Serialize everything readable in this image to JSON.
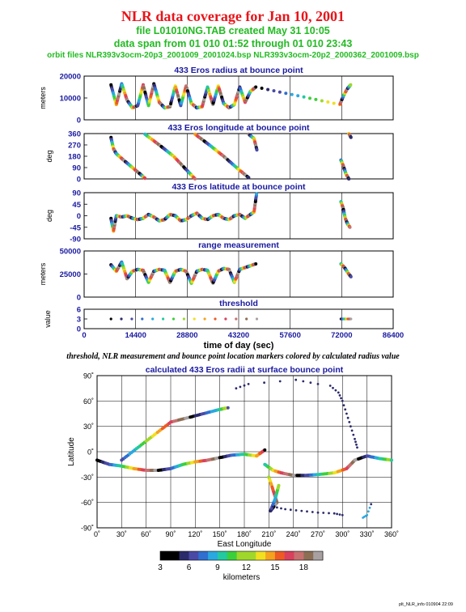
{
  "header": {
    "title": "NLR data coverage for Jan 10, 2001",
    "file_line": "file L01010NG.TAB created May 31 10:05",
    "span_line": "data span from 01 010 01:52 through 01 010 23:43",
    "orbit_line": "orbit files NLR393v3ocm-20p3_2001009_2001024.bsp NLR393v3ocm-20p2_2000362_2001009.bsp"
  },
  "caption": "threshold, NLR measurement and bounce point location markers colored by calculated radius value",
  "footer": "plt_NLR_info 010904 22:09",
  "colors": {
    "title": "#e8141a",
    "subtitle": "#22bb22",
    "panel_title": "#1a1aa0",
    "axis_text": "#1a1aa0"
  },
  "chart_data": [
    {
      "id": "radius",
      "type": "scatter",
      "title": "433 Eros radius at bounce point",
      "ylabel": "meters",
      "ylim": [
        0,
        20000
      ],
      "yticks": [
        "20000",
        "10000",
        "0"
      ],
      "xlim": [
        0,
        86400
      ],
      "series": [
        {
          "x": [
            7500,
            9000,
            10500,
            12000,
            13500,
            15000,
            16500,
            18000,
            19500,
            21000,
            22500,
            24000,
            25500,
            27000,
            28500,
            30000,
            31500,
            33000,
            34500,
            36000,
            37500,
            39000,
            40500,
            42000,
            43500,
            45000,
            46500,
            48000,
            71500,
            72500,
            73500,
            74500
          ],
          "y": [
            16000,
            7000,
            16500,
            9000,
            5500,
            6500,
            16000,
            6500,
            16500,
            8000,
            5500,
            6000,
            15500,
            6500,
            15500,
            7500,
            5500,
            6000,
            15000,
            7000,
            15500,
            7500,
            5500,
            7000,
            15000,
            8000,
            13000,
            15000,
            7000,
            11000,
            14000,
            16000
          ]
        }
      ]
    },
    {
      "id": "longitude",
      "type": "scatter",
      "title": "433 Eros longitude at bounce point",
      "ylabel": "deg",
      "ylim": [
        0,
        360
      ],
      "yticks": [
        "360",
        "270",
        "180",
        "90",
        "0"
      ],
      "xlim": [
        0,
        86400
      ],
      "series": [
        {
          "x": [
            7500,
            8200,
            9000,
            11000,
            13500,
            16000,
            17000
          ],
          "y": [
            330,
            240,
            200,
            150,
            90,
            30,
            5
          ]
        },
        {
          "x": [
            17000,
            21000,
            25000,
            29000,
            31000
          ],
          "y": [
            355,
            270,
            180,
            60,
            0
          ]
        },
        {
          "x": [
            31000,
            35000,
            39000,
            43000,
            46000
          ],
          "y": [
            355,
            270,
            180,
            80,
            10
          ]
        },
        {
          "x": [
            46000,
            47500,
            48300
          ],
          "y": [
            355,
            320,
            230
          ]
        },
        {
          "x": [
            71800,
            72500,
            73200,
            74000
          ],
          "y": [
            150,
            100,
            40,
            0
          ]
        },
        {
          "x": [
            74000,
            74600
          ],
          "y": [
            360,
            330
          ]
        }
      ]
    },
    {
      "id": "latitude",
      "type": "scatter",
      "title": "433 Eros latitude at bounce point",
      "ylabel": "deg",
      "ylim": [
        -90,
        90
      ],
      "yticks": [
        "90",
        "45",
        "0",
        "-45",
        "-90"
      ],
      "xlim": [
        0,
        86400
      ],
      "series": [
        {
          "x": [
            7500,
            8200,
            9000,
            10500,
            12000,
            13500,
            15000,
            16500,
            18000,
            19500,
            21000,
            22500,
            24000,
            25500,
            27000,
            28500,
            30000,
            31500,
            33000,
            34500,
            36000,
            37500,
            39000,
            40500,
            42000,
            43500,
            45000,
            46500,
            47500,
            48200
          ],
          "y": [
            -10,
            -60,
            0,
            -5,
            0,
            -10,
            -15,
            -10,
            5,
            -5,
            -20,
            -15,
            5,
            0,
            -20,
            -15,
            0,
            10,
            -10,
            -15,
            0,
            5,
            -10,
            -15,
            0,
            5,
            -10,
            5,
            15,
            85
          ]
        },
        {
          "x": [
            71800,
            72400,
            73000,
            73600,
            74300
          ],
          "y": [
            55,
            30,
            -10,
            -30,
            -45
          ]
        }
      ]
    },
    {
      "id": "range",
      "type": "scatter",
      "title": "range measurement",
      "ylabel": "meters",
      "ylim": [
        0,
        50000
      ],
      "yticks": [
        "50000",
        "25000",
        "0"
      ],
      "xlim": [
        0,
        86400
      ],
      "series": [
        {
          "x": [
            7500,
            9000,
            10500,
            12000,
            13500,
            15000,
            16500,
            18000,
            19500,
            21000,
            22500,
            24000,
            25500,
            27000,
            28500,
            30000,
            31500,
            33000,
            34500,
            36000,
            37500,
            39000,
            40500,
            42000,
            43500,
            45000,
            46500,
            48000
          ],
          "y": [
            35000,
            28000,
            38000,
            20000,
            28000,
            30000,
            29000,
            16000,
            28000,
            30000,
            29000,
            16000,
            28000,
            30000,
            28000,
            15000,
            28000,
            30000,
            29000,
            15000,
            28000,
            31000,
            30000,
            16000,
            30000,
            32000,
            34000,
            36000
          ]
        },
        {
          "x": [
            71800,
            72800,
            73800,
            74600
          ],
          "y": [
            36000,
            32000,
            26000,
            22000
          ]
        }
      ]
    },
    {
      "id": "threshold",
      "type": "scatter",
      "title": "threshold",
      "ylabel": "value",
      "xlabel": "time of day (sec)",
      "ylim": [
        0,
        6
      ],
      "yticks": [
        "6",
        "3",
        "0"
      ],
      "xlim": [
        0,
        86400
      ],
      "xticks": [
        "0",
        "14400",
        "28800",
        "43200",
        "57600",
        "72000",
        "86400"
      ],
      "series": [
        {
          "x": [
            7500,
            48300
          ],
          "y": [
            3,
            3
          ]
        },
        {
          "x": [
            71800,
            74600
          ],
          "y": [
            3,
            3
          ]
        }
      ]
    },
    {
      "id": "map",
      "type": "scatter",
      "title": "calculated 433 Eros radii at surface bounce point",
      "xlabel": "East Longitude",
      "ylabel": "Latitude",
      "xlim": [
        0,
        360
      ],
      "ylim": [
        -90,
        90
      ],
      "xticks": [
        "0˚",
        "30˚",
        "60˚",
        "90˚",
        "120˚",
        "150˚",
        "180˚",
        "210˚",
        "240˚",
        "270˚",
        "300˚",
        "330˚",
        "360˚"
      ],
      "yticks": [
        "90˚",
        "60˚",
        "30˚",
        "0˚",
        "-30˚",
        "-60˚",
        "-90˚"
      ],
      "series": [
        {
          "x": [
            0,
            15,
            30,
            45,
            60,
            75,
            90,
            105,
            120,
            135,
            150,
            165,
            180,
            195,
            205
          ],
          "y": [
            -10,
            -15,
            -17,
            -20,
            -22,
            -22,
            -20,
            -15,
            -12,
            -10,
            -7,
            -4,
            -3,
            -5,
            2
          ]
        },
        {
          "x": [
            30,
            50,
            70,
            90,
            110,
            130,
            150,
            160
          ],
          "y": [
            -10,
            5,
            20,
            35,
            40,
            45,
            50,
            52
          ]
        },
        {
          "x": [
            205,
            215,
            225,
            240,
            255,
            270,
            290,
            305,
            315,
            330,
            345,
            360
          ],
          "y": [
            -15,
            -22,
            -25,
            -28,
            -28,
            -27,
            -25,
            -20,
            -10,
            -5,
            -8,
            -10
          ]
        },
        {
          "x": [
            210,
            215,
            220,
            212,
            218,
            222
          ],
          "y": [
            -30,
            -45,
            -60,
            -70,
            -55,
            -40
          ]
        },
        {
          "x": [
            285,
            295,
            300,
            305,
            310,
            315,
            318
          ],
          "y": [
            78,
            70,
            60,
            45,
            30,
            15,
            5
          ]
        },
        {
          "x": [
            215,
            230,
            250,
            270,
            290,
            300
          ],
          "y": [
            -65,
            -68,
            -70,
            -72,
            -73,
            -75
          ]
        },
        {
          "x": [
            325,
            330,
            335
          ],
          "y": [
            -78,
            -75,
            -62
          ]
        },
        {
          "x": [
            170,
            185,
            243,
            270
          ],
          "y": [
            75,
            80,
            85,
            80
          ]
        }
      ],
      "colorbar": {
        "label": "kilometers",
        "ticks": [
          "3",
          "6",
          "9",
          "12",
          "15",
          "18"
        ],
        "range": [
          3,
          20
        ]
      }
    }
  ]
}
